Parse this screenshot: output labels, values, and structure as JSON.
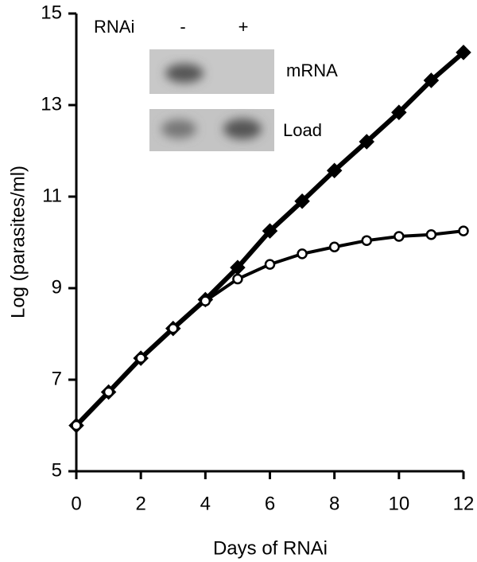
{
  "chart_data": {
    "type": "line",
    "x_label": "Days of RNAi",
    "y_label": "Log (parasites/ml)",
    "x": [
      0,
      1,
      2,
      3,
      4,
      5,
      6,
      7,
      8,
      9,
      10,
      11,
      12
    ],
    "series": [
      {
        "color": "#000000",
        "marker": "diamond",
        "filled": true,
        "values": [
          6.0,
          6.73,
          7.47,
          8.12,
          8.75,
          9.45,
          10.25,
          10.9,
          11.57,
          12.2,
          12.84,
          13.54,
          14.15
        ]
      },
      {
        "color": "#000000",
        "marker": "circle",
        "filled": false,
        "values": [
          6.0,
          6.73,
          7.47,
          8.12,
          8.72,
          9.2,
          9.52,
          9.75,
          9.9,
          10.04,
          10.13,
          10.17,
          10.25
        ]
      }
    ],
    "xlim": [
      0,
      12
    ],
    "xticks": [
      0,
      2,
      4,
      6,
      8,
      10,
      12
    ],
    "ylim": [
      5,
      15
    ],
    "yticks": [
      5,
      7,
      9,
      11,
      13,
      15
    ],
    "inset": {
      "label": "RNAi",
      "lanes": [
        "-",
        "+"
      ],
      "rows": [
        "mRNA",
        "Load"
      ]
    }
  }
}
